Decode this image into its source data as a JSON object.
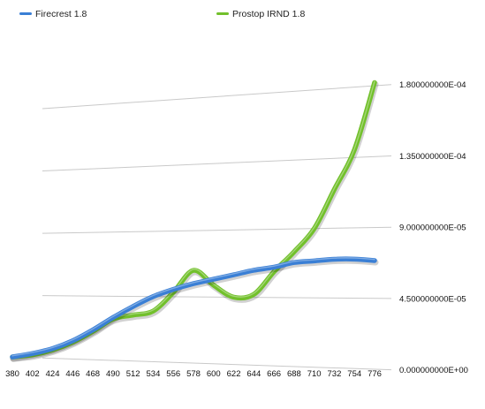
{
  "chart_data": {
    "type": "line",
    "title": "",
    "xlabel": "",
    "ylabel": "",
    "categories": [
      380,
      402,
      424,
      446,
      468,
      490,
      512,
      534,
      556,
      578,
      600,
      622,
      644,
      666,
      688,
      710,
      732,
      754,
      776
    ],
    "x_tick_labels": [
      "380",
      "402",
      "424",
      "446",
      "468",
      "490",
      "512",
      "534",
      "556",
      "578",
      "600",
      "622",
      "644",
      "666",
      "688",
      "710",
      "732",
      "754",
      "776"
    ],
    "ylim": [
      0,
      0.00018
    ],
    "y_ticks": [
      0,
      4.5e-05,
      9e-05,
      0.000135,
      0.00018
    ],
    "y_tick_labels": [
      "0.000000000E+00",
      "4.500000000E-05",
      "9.000000000E-05",
      "1.350000000E-04",
      "1.800000000E-04"
    ],
    "grid": true,
    "legend_position": "top-left",
    "series": [
      {
        "name": "Firecrest 1.8",
        "color": "#3a7fd5",
        "values": [
          0.0,
          3e-06,
          7e-06,
          1.3e-05,
          2.1e-05,
          3e-05,
          3.8e-05,
          4.5e-05,
          5e-05,
          5.4e-05,
          5.7e-05,
          6e-05,
          6.3e-05,
          6.5e-05,
          6.8e-05,
          6.9e-05,
          7e-05,
          7e-05,
          6.9e-05
        ]
      },
      {
        "name": "Prostop IRND 1.8",
        "color": "#72c02c",
        "values": [
          0.0,
          2e-06,
          6e-06,
          1.2e-05,
          2e-05,
          2.9e-05,
          3.2e-05,
          3.5e-05,
          4.8e-05,
          6.3e-05,
          5.3e-05,
          4.5e-05,
          4.7e-05,
          6.2e-05,
          7.5e-05,
          9e-05,
          0.000115,
          0.00014,
          0.000182
        ]
      }
    ]
  }
}
